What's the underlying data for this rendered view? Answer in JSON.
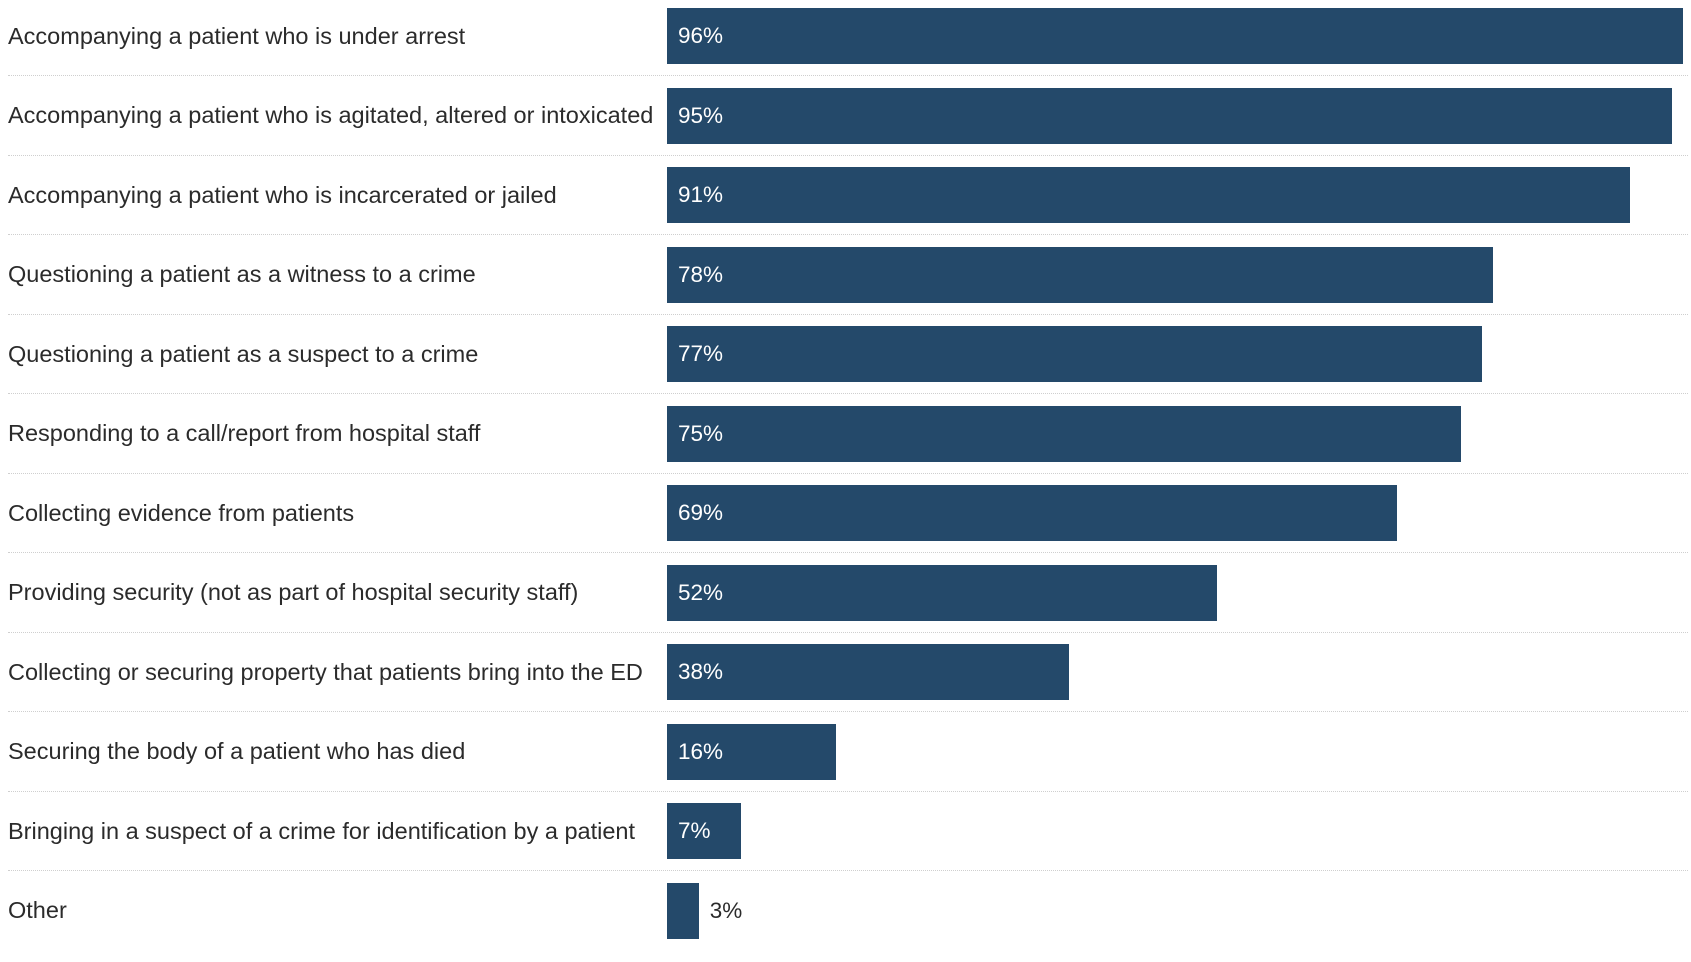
{
  "chart_data": {
    "type": "bar",
    "orientation": "horizontal",
    "title": "",
    "xlabel": "",
    "ylabel": "",
    "xlim": [
      0,
      96
    ],
    "unit": "%",
    "bar_color": "#24496a",
    "categories": [
      "Accompanying a patient who is under arrest",
      "Accompanying a patient who is agitated, altered or intoxicated",
      "Accompanying a patient who is incarcerated or jailed",
      "Questioning a patient as a witness to a crime",
      "Questioning a patient as a suspect to a crime",
      "Responding to a call/report from hospital staff",
      "Collecting evidence from patients",
      "Providing security (not as part of hospital security staff)",
      "Collecting or securing property that patients bring into the ED",
      "Securing the body of a patient who has died",
      "Bringing in a suspect of a crime for identification by a patient",
      "Other"
    ],
    "values": [
      96,
      95,
      91,
      78,
      77,
      75,
      69,
      52,
      38,
      16,
      7,
      3
    ],
    "data_labels": [
      "96%",
      "95%",
      "91%",
      "78%",
      "77%",
      "75%",
      "69%",
      "52%",
      "38%",
      "16%",
      "7%",
      "3%"
    ]
  }
}
